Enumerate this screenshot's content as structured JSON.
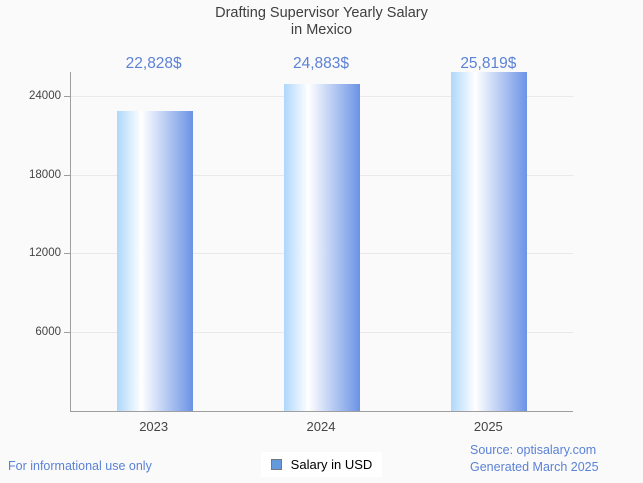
{
  "title": {
    "line1": "Drafting Supervisor Yearly Salary",
    "line2": "in Mexico"
  },
  "legend": {
    "label": "Salary in USD"
  },
  "footer": {
    "left": "For informational use only",
    "source": "Source: optisalary.com",
    "generated": "Generated March 2025"
  },
  "colors": {
    "background": "#fafafa",
    "accent_blue": "#5b82d6",
    "title_color": "#3f3f3f",
    "axis_color": "#9e9e9e",
    "grid_color": "#e9e9e9",
    "tick_label_color": "#444444",
    "legend_swatch": "#639ade",
    "legend_swatch_border": "#76767d",
    "bar_gradient": [
      "#aed7fb",
      "#ffffff",
      "#6b93e5"
    ]
  },
  "chart_data": {
    "type": "bar",
    "title": "Drafting Supervisor Yearly Salary in Mexico",
    "categories": [
      "2023",
      "2024",
      "2025"
    ],
    "values": [
      22828,
      24883,
      25819
    ],
    "value_labels": [
      "22,828$",
      "24,883$",
      "25,819$"
    ],
    "series_name": "Salary in USD",
    "xlabel": "",
    "ylabel": "",
    "yticks": [
      6000,
      12000,
      18000,
      24000
    ],
    "ylim": [
      0,
      25819
    ],
    "grid": true,
    "legend_position": "bottom",
    "bar_orientation": "vertical"
  }
}
